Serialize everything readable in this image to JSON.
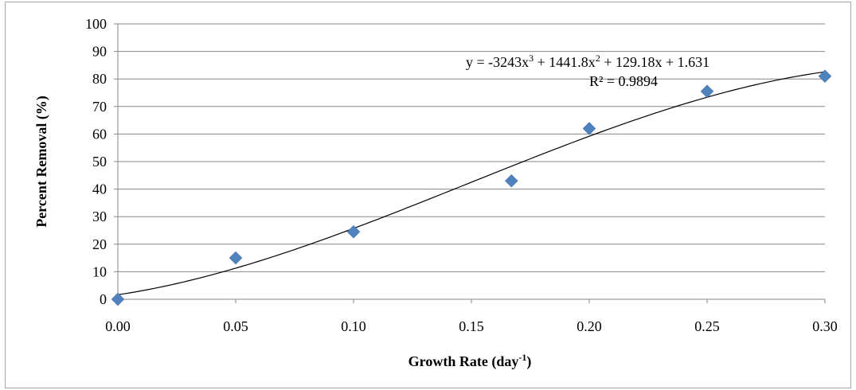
{
  "chart_data": {
    "type": "scatter",
    "xlabel_main": "Growth Rate (day",
    "xlabel_sup": "-1",
    "xlabel_close": ")",
    "ylabel": "Percent Removal (%)",
    "xlim": [
      0,
      0.3
    ],
    "ylim": [
      0,
      100
    ],
    "x_ticks": [
      "0.00",
      "0.05",
      "0.10",
      "0.15",
      "0.20",
      "0.25",
      "0.30"
    ],
    "y_ticks": [
      "0",
      "10",
      "20",
      "30",
      "40",
      "50",
      "60",
      "70",
      "80",
      "90",
      "100"
    ],
    "grid": "horizontal",
    "marker": "diamond",
    "marker_color": "#4f81bd",
    "points": [
      {
        "x": 0.0,
        "y": 0
      },
      {
        "x": 0.05,
        "y": 15
      },
      {
        "x": 0.1,
        "y": 24.5
      },
      {
        "x": 0.167,
        "y": 43
      },
      {
        "x": 0.2,
        "y": 62
      },
      {
        "x": 0.25,
        "y": 75.5
      },
      {
        "x": 0.3,
        "y": 81
      }
    ],
    "trendline": {
      "type": "polynomial",
      "order": 3,
      "coefficients": [
        -3243,
        1441.8,
        129.18,
        1.631
      ],
      "equation_parts": [
        "y = -3243x",
        "3",
        " + 1441.8x",
        "2",
        " + 129.18x + 1.631"
      ],
      "r2_label": "R² = 0.9894",
      "color": "#000000"
    }
  }
}
